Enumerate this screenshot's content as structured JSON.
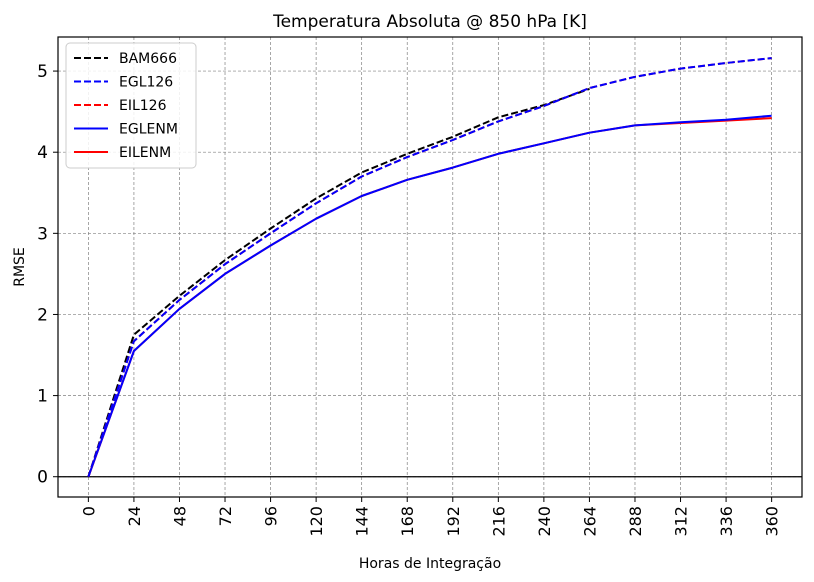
{
  "chart_data": {
    "type": "line",
    "title": "Temperatura Absoluta @ 850 hPa [K]",
    "xlabel": "Horas de Integração",
    "ylabel": "RMSE",
    "xlim": [
      -16,
      376
    ],
    "ylim": [
      -0.25,
      5.42
    ],
    "xticks": [
      0,
      24,
      48,
      72,
      96,
      120,
      144,
      168,
      192,
      216,
      240,
      264,
      288,
      312,
      336,
      360
    ],
    "yticks": [
      0,
      1,
      2,
      3,
      4,
      5
    ],
    "grid": true,
    "legend_position": "upper-left",
    "hline_at": 0,
    "series": [
      {
        "name": "BAM666",
        "color": "#000000",
        "dash": "dashed",
        "x": [
          0,
          24,
          48,
          72,
          96,
          120,
          144,
          168,
          192,
          216,
          240,
          264
        ],
        "y": [
          0.0,
          1.75,
          2.23,
          2.67,
          3.06,
          3.43,
          3.75,
          3.98,
          4.19,
          4.43,
          4.58,
          4.78
        ]
      },
      {
        "name": "EGL126",
        "color": "#0000ff",
        "dash": "dashed",
        "x": [
          0,
          24,
          48,
          72,
          96,
          120,
          144,
          168,
          192,
          216,
          240,
          264,
          288,
          312,
          336,
          360
        ],
        "y": [
          0.0,
          1.67,
          2.18,
          2.62,
          3.0,
          3.37,
          3.7,
          3.94,
          4.15,
          4.38,
          4.57,
          4.79,
          4.93,
          5.03,
          5.1,
          5.16
        ]
      },
      {
        "name": "EIL126",
        "color": "#ff0000",
        "dash": "dashed",
        "x": [
          0,
          24,
          48,
          72,
          96,
          120,
          144,
          168,
          192,
          216,
          240,
          264,
          288,
          312,
          336,
          360
        ],
        "y": [
          0.0,
          1.67,
          2.18,
          2.62,
          3.0,
          3.37,
          3.7,
          3.94,
          4.15,
          4.38,
          4.57,
          4.79,
          4.93,
          5.03,
          5.1,
          5.16
        ]
      },
      {
        "name": "EGLENM",
        "color": "#0000ff",
        "dash": "solid",
        "x": [
          0,
          24,
          48,
          72,
          96,
          120,
          144,
          168,
          192,
          216,
          240,
          264,
          288,
          312,
          336,
          360
        ],
        "y": [
          0.0,
          1.55,
          2.07,
          2.5,
          2.85,
          3.18,
          3.46,
          3.66,
          3.81,
          3.98,
          4.11,
          4.24,
          4.33,
          4.37,
          4.4,
          4.45
        ]
      },
      {
        "name": "EILENM",
        "color": "#ff0000",
        "dash": "solid",
        "x": [
          0,
          24,
          48,
          72,
          96,
          120,
          144,
          168,
          192,
          216,
          240,
          264,
          288,
          312,
          336,
          360
        ],
        "y": [
          0.0,
          1.55,
          2.07,
          2.5,
          2.85,
          3.18,
          3.46,
          3.66,
          3.81,
          3.98,
          4.11,
          4.24,
          4.33,
          4.36,
          4.39,
          4.42
        ]
      }
    ]
  }
}
